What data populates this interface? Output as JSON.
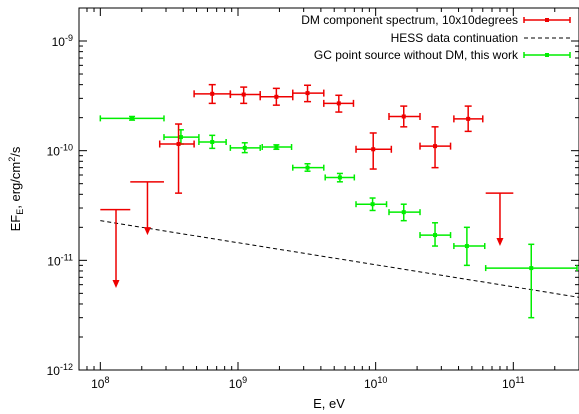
{
  "chart_data": {
    "type": "scatter",
    "title": "",
    "xlabel": "E, eV",
    "ylabel": {
      "main": "EF",
      "sub": "E",
      "rest": ", erg/cm",
      "sup": "2",
      "end": "/s"
    },
    "xscale": "log",
    "yscale": "log",
    "xlim": [
      70000000,
      300000000000
    ],
    "ylim": [
      1e-12,
      2e-09
    ],
    "x_ticks": [
      {
        "value": 100000000.0,
        "base": "10",
        "exp": "8"
      },
      {
        "value": 1000000000.0,
        "base": "10",
        "exp": "9"
      },
      {
        "value": 10000000000.0,
        "base": "10",
        "exp": "10"
      },
      {
        "value": 100000000000.0,
        "base": "10",
        "exp": "11"
      }
    ],
    "y_ticks": [
      {
        "value": 1e-12,
        "base": "10",
        "exp": "-12"
      },
      {
        "value": 1e-11,
        "base": "10",
        "exp": "-11"
      },
      {
        "value": 1e-10,
        "base": "10",
        "exp": "-10"
      },
      {
        "value": 1e-09,
        "base": "10",
        "exp": "-9"
      }
    ],
    "grid": false,
    "legend_position": "top-right",
    "series": [
      {
        "name": "DM component spectrum, 10x10degrees",
        "color": "#ee0000",
        "points": [
          {
            "x": 650000000,
            "y": 3.3e-10,
            "xlo": 480000000,
            "xhi": 880000000,
            "ylo": 2.7e-10,
            "yhi": 4e-10
          },
          {
            "x": 1100000000,
            "y": 3.25e-10,
            "xlo": 880000000,
            "xhi": 1450000000,
            "ylo": 2.7e-10,
            "yhi": 3.8e-10
          },
          {
            "x": 1900000000,
            "y": 3.1e-10,
            "xlo": 1450000000,
            "xhi": 2500000000,
            "ylo": 2.6e-10,
            "yhi": 3.7e-10
          },
          {
            "x": 3200000000,
            "y": 3.35e-10,
            "xlo": 2500000000,
            "xhi": 4200000000,
            "ylo": 2.8e-10,
            "yhi": 3.95e-10
          },
          {
            "x": 5400000000,
            "y": 2.7e-10,
            "xlo": 4200000000,
            "xhi": 6900000000,
            "ylo": 2.25e-10,
            "yhi": 3.2e-10
          },
          {
            "x": 9600000000,
            "y": 1.03e-10,
            "xlo": 7200000000,
            "xhi": 13000000000,
            "ylo": 6.8e-11,
            "yhi": 1.45e-10
          },
          {
            "x": 16000000000,
            "y": 2.05e-10,
            "xlo": 12500000000,
            "xhi": 21000000000,
            "ylo": 1.65e-10,
            "yhi": 2.55e-10
          },
          {
            "x": 27000000000,
            "y": 1.1e-10,
            "xlo": 21000000000,
            "xhi": 35000000000,
            "ylo": 7e-11,
            "yhi": 1.65e-10
          },
          {
            "x": 47000000000,
            "y": 1.95e-10,
            "xlo": 37000000000,
            "xhi": 60000000000,
            "ylo": 1.5e-10,
            "yhi": 2.55e-10
          },
          {
            "x": 370000000,
            "y": 1.15e-10,
            "xlo": 270000000,
            "xhi": 480000000,
            "ylo": 4.1e-11,
            "yhi": 1.75e-10
          }
        ],
        "upper_limits": [
          {
            "x": 130000000,
            "y": 2.9e-11,
            "xlo": 100000000,
            "xhi": 165000000,
            "to": 5.6e-12
          },
          {
            "x": 220000000,
            "y": 5.2e-11,
            "xlo": 165000000,
            "xhi": 290000000,
            "to": 1.7e-11
          },
          {
            "x": 80000000000,
            "y": 4.1e-11,
            "xlo": 63000000000,
            "xhi": 100000000000,
            "to": 1.35e-11
          }
        ]
      },
      {
        "name": "HESS data continuation",
        "color": "#000000",
        "style": "dashed",
        "line": [
          {
            "x": 100000000,
            "y": 2.3e-11
          },
          {
            "x": 300000000000,
            "y": 4.6e-12
          }
        ]
      },
      {
        "name": "GC point source without DM, this work",
        "color": "#00ee00",
        "points": [
          {
            "x": 170000000,
            "y": 1.97e-10,
            "xlo": 100000000,
            "xhi": 290000000,
            "ylo": 1.9e-10,
            "yhi": 2.05e-10
          },
          {
            "x": 385000000,
            "y": 1.33e-10,
            "xlo": 290000000,
            "xhi": 520000000,
            "ylo": 1.15e-10,
            "yhi": 1.55e-10
          },
          {
            "x": 650000000,
            "y": 1.2e-10,
            "xlo": 520000000,
            "xhi": 820000000,
            "ylo": 1.05e-10,
            "yhi": 1.38e-10
          },
          {
            "x": 1120000000,
            "y": 1.06e-10,
            "xlo": 880000000,
            "xhi": 1450000000,
            "ylo": 9.6e-11,
            "yhi": 1.18e-10
          },
          {
            "x": 1900000000,
            "y": 1.08e-10,
            "xlo": 1500000000,
            "xhi": 2450000000,
            "ylo": 1.03e-10,
            "yhi": 1.13e-10
          },
          {
            "x": 3200000000,
            "y": 7e-11,
            "xlo": 2500000000,
            "xhi": 4200000000,
            "ylo": 6.5e-11,
            "yhi": 7.6e-11
          },
          {
            "x": 5500000000,
            "y": 5.7e-11,
            "xlo": 4300000000,
            "xhi": 7000000000,
            "ylo": 5.2e-11,
            "yhi": 6.2e-11
          },
          {
            "x": 9500000000,
            "y": 3.25e-11,
            "xlo": 7200000000,
            "xhi": 12000000000,
            "ylo": 2.85e-11,
            "yhi": 3.7e-11
          },
          {
            "x": 16000000000,
            "y": 2.75e-11,
            "xlo": 12500000000,
            "xhi": 21000000000,
            "ylo": 2.3e-11,
            "yhi": 3.25e-11
          },
          {
            "x": 27000000000,
            "y": 1.7e-11,
            "xlo": 21000000000,
            "xhi": 35000000000,
            "ylo": 1.35e-11,
            "yhi": 2.2e-11
          },
          {
            "x": 46000000000,
            "y": 1.35e-11,
            "xlo": 37000000000,
            "xhi": 62000000000,
            "ylo": 9e-12,
            "yhi": 2e-11
          },
          {
            "x": 135000000000,
            "y": 8.5e-12,
            "xlo": 63000000000,
            "xhi": 290000000000,
            "ylo": 3e-12,
            "yhi": 1.4e-11
          }
        ]
      }
    ]
  }
}
